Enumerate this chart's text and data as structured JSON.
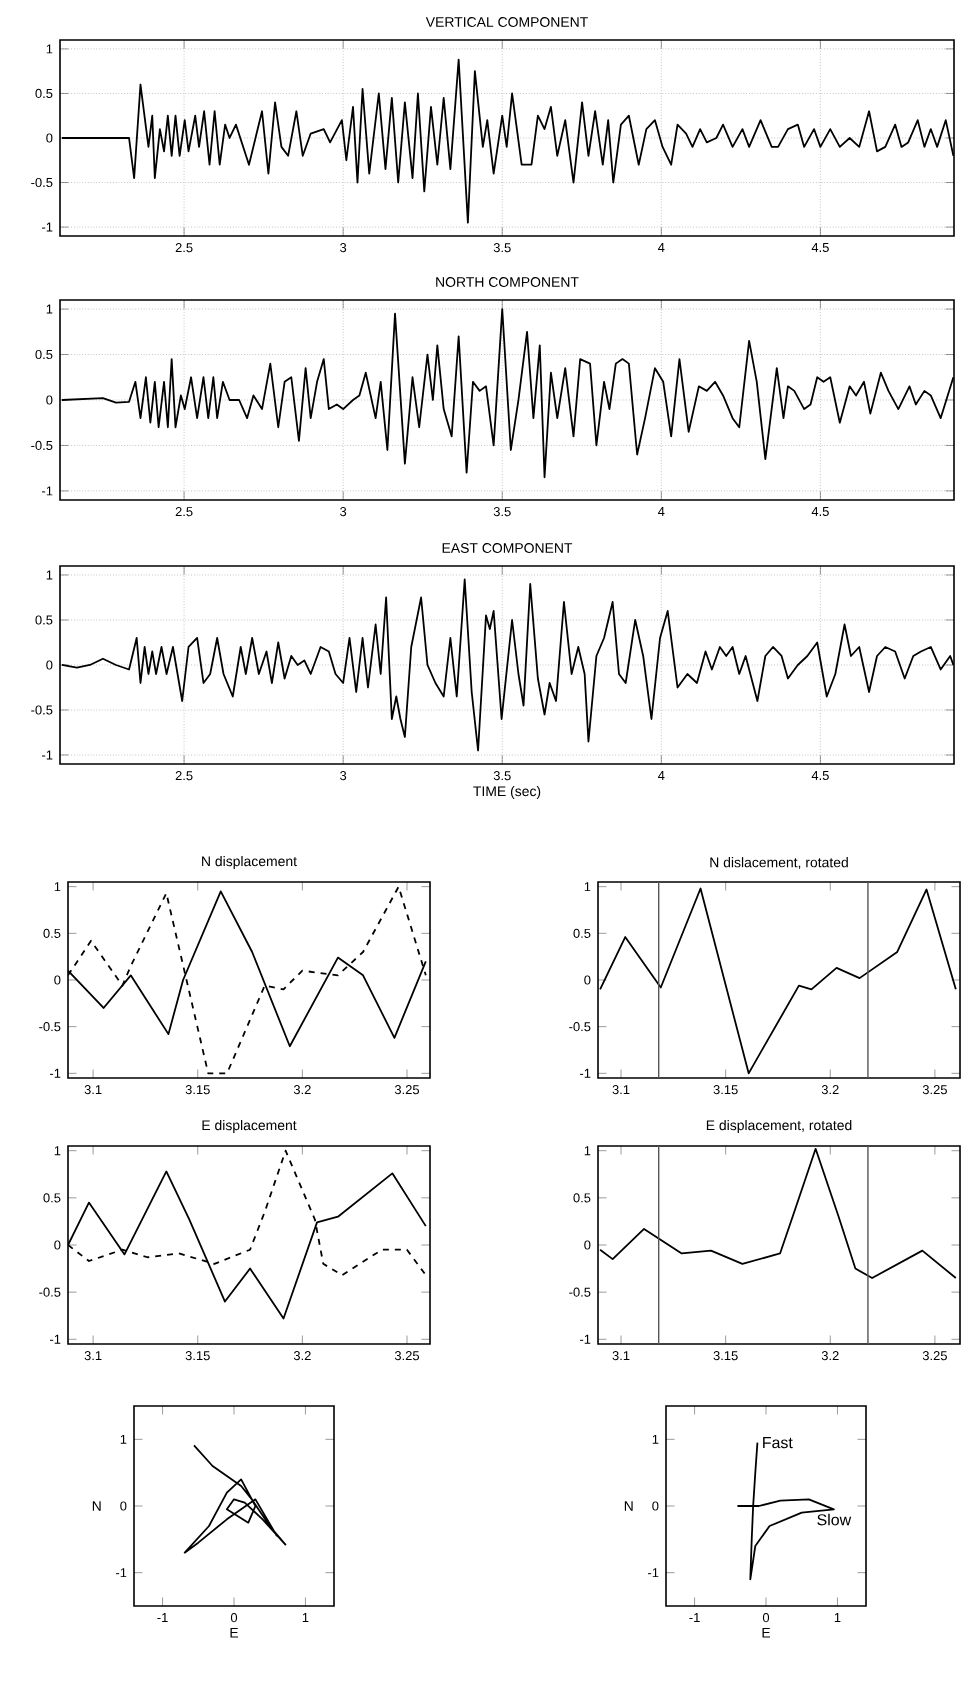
{
  "chart_data": [
    {
      "type": "line",
      "title": "VERTICAL COMPONENT",
      "xlim": [
        2.11,
        4.92
      ],
      "ylim": [
        -1.1,
        1.1
      ],
      "xticks": [
        2.5,
        3,
        3.5,
        4,
        4.5
      ],
      "yticks": [
        -1,
        -0.5,
        0,
        0.5,
        1
      ],
      "grid": true,
      "series": [
        {
          "color": "#000000",
          "line_style": "solid",
          "x": [
            2.116,
            2.327,
            2.343,
            2.363,
            2.388,
            2.4,
            2.408,
            2.424,
            2.437,
            2.449,
            2.461,
            2.473,
            2.486,
            2.502,
            2.514,
            2.535,
            2.547,
            2.563,
            2.58,
            2.596,
            2.612,
            2.629,
            2.643,
            2.663,
            2.704,
            2.745,
            2.765,
            2.786,
            2.806,
            2.827,
            2.853,
            2.873,
            2.898,
            2.939,
            2.959,
            2.996,
            3.01,
            3.031,
            3.045,
            3.061,
            3.082,
            3.112,
            3.133,
            3.153,
            3.173,
            3.194,
            3.218,
            3.235,
            3.255,
            3.276,
            3.296,
            3.316,
            3.337,
            3.363,
            3.392,
            3.414,
            3.439,
            3.453,
            3.473,
            3.5,
            3.514,
            3.531,
            3.561,
            3.592,
            3.612,
            3.633,
            3.653,
            3.673,
            3.698,
            3.724,
            3.751,
            3.771,
            3.792,
            3.816,
            3.833,
            3.849,
            3.873,
            3.898,
            3.929,
            3.953,
            3.98,
            4.004,
            4.031,
            4.051,
            4.078,
            4.098,
            4.122,
            4.143,
            4.173,
            4.194,
            4.224,
            4.255,
            4.276,
            4.312,
            4.347,
            4.367,
            4.398,
            4.429,
            4.449,
            4.48,
            4.5,
            4.531,
            4.561,
            4.592,
            4.622,
            4.653,
            4.678,
            4.704,
            4.735,
            4.755,
            4.776,
            4.806,
            4.827,
            4.847,
            4.867,
            4.894,
            4.918
          ],
          "values": [
            0,
            0,
            -0.45,
            0.6,
            -0.1,
            0.25,
            -0.45,
            0.1,
            -0.15,
            0.25,
            -0.2,
            0.25,
            -0.2,
            0.2,
            -0.15,
            0.25,
            -0.1,
            0.3,
            -0.3,
            0.3,
            -0.3,
            0.15,
            0,
            0.15,
            -0.3,
            0.3,
            -0.4,
            0.4,
            -0.1,
            -0.2,
            0.3,
            -0.2,
            0.05,
            0.1,
            -0.05,
            0.2,
            -0.25,
            0.35,
            -0.5,
            0.55,
            -0.4,
            0.5,
            -0.35,
            0.45,
            -0.5,
            0.4,
            -0.45,
            0.5,
            -0.6,
            0.35,
            -0.3,
            0.45,
            -0.35,
            0.88,
            -0.95,
            0.75,
            -0.1,
            0.2,
            -0.4,
            0.25,
            -0.1,
            0.5,
            -0.3,
            -0.3,
            0.25,
            0.1,
            0.35,
            -0.2,
            0.2,
            -0.5,
            0.4,
            -0.2,
            0.3,
            -0.3,
            0.2,
            -0.5,
            0.15,
            0.25,
            -0.3,
            0.1,
            0.2,
            -0.1,
            -0.3,
            0.15,
            0.05,
            -0.1,
            0.1,
            -0.05,
            0,
            0.15,
            -0.1,
            0.1,
            -0.1,
            0.2,
            -0.1,
            -0.1,
            0.1,
            0.15,
            -0.1,
            0.1,
            -0.1,
            0.1,
            -0.1,
            0,
            -0.1,
            0.3,
            -0.15,
            -0.1,
            0.15,
            -0.1,
            -0.05,
            0.2,
            -0.1,
            0.1,
            -0.1,
            0.2,
            -0.2
          ]
        }
      ]
    },
    {
      "type": "line",
      "title": "NORTH COMPONENT",
      "xlim": [
        2.11,
        4.92
      ],
      "ylim": [
        -1.1,
        1.1
      ],
      "xticks": [
        2.5,
        3,
        3.5,
        4,
        4.5
      ],
      "yticks": [
        -1,
        -0.5,
        0,
        0.5,
        1
      ],
      "grid": true,
      "series": [
        {
          "color": "#000000",
          "line_style": "solid",
          "x": [
            2.116,
            2.245,
            2.286,
            2.327,
            2.347,
            2.363,
            2.38,
            2.394,
            2.408,
            2.42,
            2.437,
            2.449,
            2.461,
            2.473,
            2.49,
            2.502,
            2.522,
            2.541,
            2.561,
            2.576,
            2.592,
            2.604,
            2.622,
            2.643,
            2.673,
            2.698,
            2.718,
            2.745,
            2.771,
            2.796,
            2.816,
            2.837,
            2.861,
            2.882,
            2.898,
            2.918,
            2.939,
            2.955,
            2.98,
            3.0,
            3.031,
            3.051,
            3.071,
            3.102,
            3.118,
            3.139,
            3.163,
            3.194,
            3.218,
            3.239,
            3.265,
            3.282,
            3.296,
            3.316,
            3.341,
            3.363,
            3.388,
            3.408,
            3.429,
            3.449,
            3.473,
            3.5,
            3.527,
            3.551,
            3.578,
            3.598,
            3.618,
            3.633,
            3.653,
            3.673,
            3.698,
            3.724,
            3.745,
            3.776,
            3.796,
            3.82,
            3.837,
            3.857,
            3.878,
            3.898,
            3.924,
            3.949,
            3.98,
            4.006,
            4.031,
            4.057,
            4.086,
            4.118,
            4.143,
            4.169,
            4.194,
            4.224,
            4.245,
            4.276,
            4.3,
            4.327,
            4.363,
            4.384,
            4.398,
            4.418,
            4.449,
            4.469,
            4.49,
            4.51,
            4.531,
            4.561,
            4.592,
            4.612,
            4.637,
            4.657,
            4.69,
            4.714,
            4.745,
            4.78,
            4.8,
            4.827,
            4.847,
            4.878,
            4.918
          ],
          "values": [
            0,
            0.02,
            -0.03,
            -0.02,
            0.2,
            -0.2,
            0.25,
            -0.25,
            0.2,
            -0.3,
            0.2,
            -0.3,
            0.45,
            -0.3,
            0.05,
            -0.1,
            0.25,
            -0.2,
            0.25,
            -0.2,
            0.25,
            -0.2,
            0.2,
            0,
            0,
            -0.2,
            0.05,
            -0.1,
            0.4,
            -0.3,
            0.2,
            0.25,
            -0.45,
            0.35,
            -0.2,
            0.2,
            0.45,
            -0.1,
            -0.05,
            -0.1,
            0,
            0.05,
            0.3,
            -0.2,
            0.2,
            -0.55,
            0.95,
            -0.7,
            0.25,
            -0.3,
            0.5,
            0,
            0.6,
            -0.1,
            -0.4,
            0.7,
            -0.8,
            0.2,
            0.1,
            0.15,
            -0.5,
            1.0,
            -0.55,
            0,
            0.75,
            -0.2,
            0.6,
            -0.85,
            0.3,
            -0.2,
            0.35,
            -0.4,
            0.45,
            0.4,
            -0.5,
            0.2,
            -0.1,
            0.4,
            0.45,
            0.4,
            -0.6,
            -0.2,
            0.35,
            0.2,
            -0.4,
            0.45,
            -0.35,
            0.15,
            0.1,
            0.2,
            0.05,
            -0.2,
            -0.3,
            0.65,
            0.2,
            -0.65,
            0.35,
            -0.2,
            0.15,
            0.1,
            -0.1,
            -0.05,
            0.25,
            0.2,
            0.25,
            -0.25,
            0.15,
            0.05,
            0.2,
            -0.15,
            0.3,
            0.1,
            -0.1,
            0.15,
            -0.05,
            0.1,
            0.05,
            -0.2,
            0.25
          ]
        }
      ]
    },
    {
      "type": "line",
      "title": "EAST COMPONENT",
      "xlabel": "TIME (sec)",
      "xlim": [
        2.11,
        4.92
      ],
      "ylim": [
        -1.1,
        1.1
      ],
      "xticks": [
        2.5,
        3,
        3.5,
        4,
        4.5
      ],
      "yticks": [
        -1,
        -0.5,
        0,
        0.5,
        1
      ],
      "grid": true,
      "series": [
        {
          "color": "#000000",
          "line_style": "solid",
          "x": [
            2.116,
            2.163,
            2.204,
            2.245,
            2.286,
            2.327,
            2.351,
            2.363,
            2.376,
            2.388,
            2.4,
            2.412,
            2.429,
            2.445,
            2.465,
            2.494,
            2.514,
            2.541,
            2.561,
            2.582,
            2.604,
            2.624,
            2.653,
            2.678,
            2.694,
            2.714,
            2.735,
            2.759,
            2.776,
            2.796,
            2.816,
            2.837,
            2.857,
            2.878,
            2.898,
            2.929,
            2.955,
            2.976,
            3.0,
            3.02,
            3.041,
            3.061,
            3.078,
            3.102,
            3.118,
            3.135,
            3.153,
            3.167,
            3.18,
            3.194,
            3.214,
            3.245,
            3.265,
            3.29,
            3.316,
            3.337,
            3.357,
            3.382,
            3.404,
            3.424,
            3.449,
            3.461,
            3.473,
            3.498,
            3.531,
            3.551,
            3.567,
            3.588,
            3.612,
            3.633,
            3.649,
            3.669,
            3.694,
            3.718,
            3.739,
            3.759,
            3.771,
            3.796,
            3.82,
            3.847,
            3.867,
            3.888,
            3.918,
            3.943,
            3.969,
            3.996,
            4.02,
            4.051,
            4.082,
            4.112,
            4.139,
            4.159,
            4.184,
            4.204,
            4.224,
            4.245,
            4.265,
            4.302,
            4.327,
            4.351,
            4.378,
            4.398,
            4.429,
            4.459,
            4.49,
            4.52,
            4.547,
            4.576,
            4.596,
            4.622,
            4.653,
            4.678,
            4.704,
            4.735,
            4.765,
            4.792,
            4.816,
            4.847,
            4.878,
            4.908,
            4.918
          ],
          "values": [
            0,
            -0.03,
            0,
            0.07,
            0,
            -0.05,
            0.3,
            -0.2,
            0.2,
            -0.1,
            0.15,
            -0.1,
            0.2,
            -0.1,
            0.2,
            -0.4,
            0.2,
            0.3,
            -0.2,
            -0.1,
            0.3,
            -0.1,
            -0.35,
            0.2,
            -0.1,
            0.3,
            -0.1,
            0.15,
            -0.2,
            0.25,
            -0.15,
            0.1,
            0,
            0.05,
            -0.1,
            0.2,
            0.15,
            -0.1,
            -0.2,
            0.3,
            -0.3,
            0.3,
            -0.25,
            0.45,
            -0.1,
            0.75,
            -0.6,
            -0.35,
            -0.6,
            -0.8,
            0.2,
            0.75,
            0,
            -0.2,
            -0.35,
            0.3,
            -0.35,
            0.95,
            -0.3,
            -0.95,
            0.55,
            0.4,
            0.6,
            -0.6,
            0.5,
            -0.1,
            -0.45,
            0.9,
            -0.15,
            -0.55,
            -0.2,
            -0.4,
            0.7,
            -0.1,
            0.2,
            -0.1,
            -0.85,
            0.1,
            0.3,
            0.7,
            -0.1,
            -0.2,
            0.5,
            0.1,
            -0.6,
            0.3,
            0.6,
            -0.25,
            -0.1,
            -0.2,
            0.15,
            -0.05,
            0.2,
            0.1,
            0.2,
            -0.1,
            0.1,
            -0.4,
            0.1,
            0.2,
            0.1,
            -0.15,
            0,
            0.1,
            0.25,
            -0.35,
            -0.1,
            0.45,
            0.1,
            0.2,
            -0.3,
            0.1,
            0.2,
            0.15,
            -0.15,
            0.1,
            0.15,
            0.2,
            -0.05,
            0.1,
            0
          ]
        }
      ]
    },
    {
      "type": "line",
      "title": "N displacement",
      "xlim": [
        3.088,
        3.261
      ],
      "ylim": [
        -1.05,
        1.05
      ],
      "xticks": [
        3.1,
        3.15,
        3.2,
        3.25
      ],
      "yticks": [
        -1,
        -0.5,
        0,
        0.5,
        1
      ],
      "series": [
        {
          "color": "#000000",
          "line_style": "solid",
          "x": [
            3.088,
            3.105,
            3.118,
            3.136,
            3.143,
            3.161,
            3.176,
            3.194,
            3.217,
            3.229,
            3.244,
            3.259
          ],
          "values": [
            0.1,
            -0.3,
            0.05,
            -0.58,
            0,
            0.95,
            0.3,
            -0.71,
            0.24,
            0.05,
            -0.62,
            0.2
          ]
        },
        {
          "color": "#000000",
          "line_style": "dashed",
          "x": [
            3.088,
            3.099,
            3.114,
            3.118,
            3.135,
            3.155,
            3.164,
            3.182,
            3.191,
            3.2,
            3.217,
            3.229,
            3.246,
            3.259
          ],
          "values": [
            0.05,
            0.42,
            -0.06,
            0.15,
            0.93,
            -1.0,
            -1.0,
            -0.06,
            -0.1,
            0.1,
            0.05,
            0.3,
            1.0,
            0.05
          ]
        }
      ]
    },
    {
      "type": "line",
      "title": "N dislacement, rotated",
      "xlim": [
        3.089,
        3.262
      ],
      "ylim": [
        -1.05,
        1.05
      ],
      "xticks": [
        3.1,
        3.15,
        3.2,
        3.25
      ],
      "yticks": [
        -1,
        -0.5,
        0,
        0.5,
        1
      ],
      "ref_lines": [
        {
          "axis": "x",
          "value": 3.118,
          "color": "#555555"
        },
        {
          "axis": "x",
          "value": 3.218,
          "color": "#555555"
        }
      ],
      "series": [
        {
          "color": "#000000",
          "line_style": "solid",
          "x": [
            3.09,
            3.102,
            3.119,
            3.138,
            3.161,
            3.185,
            3.191,
            3.203,
            3.214,
            3.232,
            3.246,
            3.26
          ],
          "values": [
            -0.1,
            0.46,
            -0.08,
            0.98,
            -1.0,
            -0.06,
            -0.1,
            0.13,
            0.02,
            0.3,
            0.97,
            -0.1
          ]
        }
      ]
    },
    {
      "type": "line",
      "title": "E displacement",
      "xlim": [
        3.088,
        3.261
      ],
      "ylim": [
        -1.05,
        1.05
      ],
      "xticks": [
        3.1,
        3.15,
        3.2,
        3.25
      ],
      "yticks": [
        -1,
        -0.5,
        0,
        0.5,
        1
      ],
      "series": [
        {
          "color": "#000000",
          "line_style": "solid",
          "x": [
            3.088,
            3.098,
            3.115,
            3.135,
            3.146,
            3.163,
            3.175,
            3.191,
            3.207,
            3.217,
            3.243,
            3.259
          ],
          "values": [
            0,
            0.45,
            -0.1,
            0.78,
            0.27,
            -0.6,
            -0.25,
            -0.78,
            0.24,
            0.3,
            0.76,
            0.2
          ]
        },
        {
          "color": "#000000",
          "line_style": "dashed",
          "x": [
            3.088,
            3.098,
            3.114,
            3.126,
            3.141,
            3.158,
            3.175,
            3.182,
            3.192,
            3.206,
            3.21,
            3.219,
            3.238,
            3.25,
            3.259
          ],
          "values": [
            0,
            -0.17,
            -0.05,
            -0.13,
            -0.09,
            -0.2,
            -0.05,
            0.35,
            1.0,
            0.27,
            -0.2,
            -0.32,
            -0.05,
            -0.05,
            -0.32
          ]
        }
      ]
    },
    {
      "type": "line",
      "title": "E displacement, rotated",
      "xlim": [
        3.089,
        3.262
      ],
      "ylim": [
        -1.05,
        1.05
      ],
      "xticks": [
        3.1,
        3.15,
        3.2,
        3.25
      ],
      "yticks": [
        -1,
        -0.5,
        0,
        0.5,
        1
      ],
      "ref_lines": [
        {
          "axis": "x",
          "value": 3.118,
          "color": "#555555"
        },
        {
          "axis": "x",
          "value": 3.218,
          "color": "#555555"
        }
      ],
      "series": [
        {
          "color": "#000000",
          "line_style": "solid",
          "x": [
            3.09,
            3.096,
            3.111,
            3.129,
            3.143,
            3.158,
            3.176,
            3.182,
            3.193,
            3.204,
            3.212,
            3.22,
            3.244,
            3.26
          ],
          "values": [
            -0.05,
            -0.15,
            0.17,
            -0.09,
            -0.06,
            -0.2,
            -0.09,
            0.3,
            1.02,
            0.3,
            -0.25,
            -0.35,
            -0.06,
            -0.35
          ]
        }
      ]
    },
    {
      "type": "line",
      "xlabel": "E",
      "ylabel": "N",
      "xlim": [
        -1.4,
        1.4
      ],
      "ylim": [
        -1.5,
        1.5
      ],
      "xticks": [
        -1,
        0,
        1
      ],
      "yticks": [
        -1,
        0,
        1
      ],
      "series": [
        {
          "color": "#000000",
          "line_style": "solid",
          "x": [
            -0.56,
            -0.3,
            0.1,
            0.25,
            0.5,
            0.72,
            0.4,
            0.15,
            0.0,
            -0.1,
            0.2,
            0.3,
            0.1,
            -0.1,
            -0.35,
            -0.69,
            -0.5,
            -0.1,
            0.3,
            0.6
          ],
          "values": [
            0.91,
            0.6,
            0.3,
            0.1,
            -0.3,
            -0.58,
            -0.2,
            0.05,
            0.1,
            -0.05,
            -0.25,
            0.0,
            0.4,
            0.2,
            -0.3,
            -0.7,
            -0.55,
            -0.2,
            0.1,
            -0.45
          ]
        }
      ]
    },
    {
      "type": "line",
      "xlabel": "E",
      "ylabel": "N",
      "xlim": [
        -1.4,
        1.4
      ],
      "ylim": [
        -1.5,
        1.5
      ],
      "xticks": [
        -1,
        0,
        1
      ],
      "yticks": [
        -1,
        0,
        1
      ],
      "annotations": [
        {
          "text": "Fast",
          "x": -0.12,
          "y": 0.95
        },
        {
          "text": "Slow",
          "x": 0.95,
          "y": -0.05
        }
      ],
      "series": [
        {
          "color": "#000000",
          "line_style": "solid",
          "x": [
            -0.12,
            -0.15,
            -0.18,
            -0.2,
            -0.22,
            -0.15,
            0.05,
            0.5,
            0.95,
            0.6,
            0.2,
            -0.1,
            -0.4
          ],
          "values": [
            0.95,
            0.5,
            0,
            -0.5,
            -1.1,
            -0.6,
            -0.3,
            -0.1,
            -0.05,
            0.1,
            0.08,
            0.0,
            0.0
          ]
        }
      ]
    }
  ]
}
